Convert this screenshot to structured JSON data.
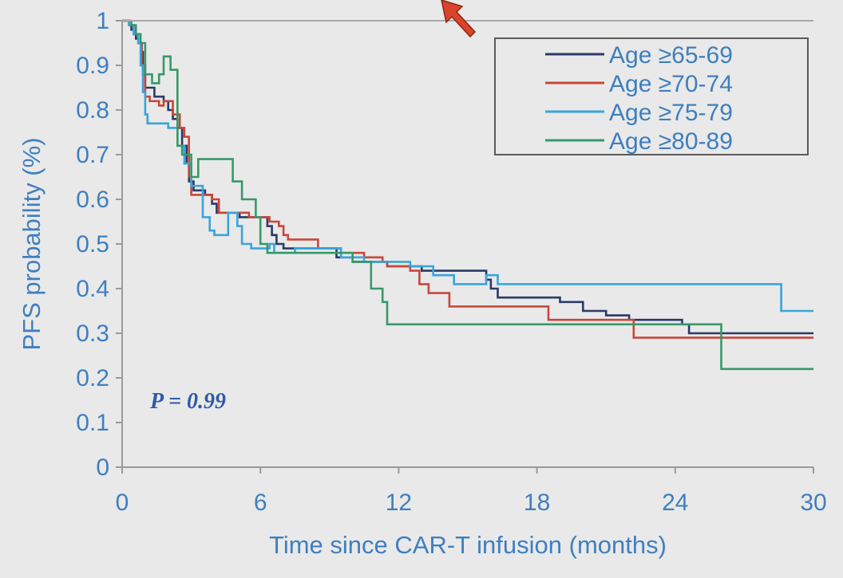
{
  "chart_data": {
    "type": "line",
    "step": true,
    "title": "",
    "xlabel": "Time since CAR-T infusion (months)",
    "ylabel": "PFS probability (%)",
    "xlim": [
      0,
      30
    ],
    "ylim": [
      0,
      1
    ],
    "x_ticks": [
      0,
      6,
      12,
      18,
      24,
      30
    ],
    "y_ticks": [
      0,
      0.1,
      0.2,
      0.3,
      0.4,
      0.5,
      0.6,
      0.7,
      0.8,
      0.9,
      1
    ],
    "y_tick_labels": [
      "0",
      "0.1",
      "0.2",
      "0.3",
      "0.4",
      "0.5",
      "0.6",
      "0.7",
      "0.8",
      "0.9",
      "1"
    ],
    "grid": false,
    "legend_position": "top-right",
    "annotation": {
      "prefix": "P",
      "text": " = 0.99"
    },
    "colors": {
      "axis": "#3f7fbf",
      "background": "#e9e9e9"
    },
    "series": [
      {
        "name": "Age ≥65-69",
        "color": "#2b3a67",
        "points": [
          [
            0,
            1
          ],
          [
            0.3,
            0.99
          ],
          [
            0.4,
            0.98
          ],
          [
            0.5,
            0.97
          ],
          [
            0.6,
            0.96
          ],
          [
            0.7,
            0.95
          ],
          [
            0.85,
            0.93
          ],
          [
            0.9,
            0.88
          ],
          [
            1.0,
            0.85
          ],
          [
            1.3,
            0.85
          ],
          [
            1.4,
            0.83
          ],
          [
            1.7,
            0.83
          ],
          [
            1.8,
            0.82
          ],
          [
            2.0,
            0.8
          ],
          [
            2.2,
            0.78
          ],
          [
            2.4,
            0.76
          ],
          [
            2.6,
            0.72
          ],
          [
            2.8,
            0.68
          ],
          [
            2.9,
            0.64
          ],
          [
            3.1,
            0.62
          ],
          [
            3.6,
            0.61
          ],
          [
            3.9,
            0.59
          ],
          [
            4.1,
            0.57
          ],
          [
            4.8,
            0.57
          ],
          [
            5.1,
            0.56
          ],
          [
            6.0,
            0.56
          ],
          [
            6.3,
            0.54
          ],
          [
            6.5,
            0.52
          ],
          [
            6.7,
            0.5
          ],
          [
            7.0,
            0.49
          ],
          [
            9.0,
            0.49
          ],
          [
            9.3,
            0.47
          ],
          [
            10.0,
            0.46
          ],
          [
            11.5,
            0.45
          ],
          [
            12.5,
            0.45
          ],
          [
            13.0,
            0.44
          ],
          [
            15.5,
            0.44
          ],
          [
            15.8,
            0.42
          ],
          [
            16.0,
            0.4
          ],
          [
            16.3,
            0.38
          ],
          [
            19.0,
            0.37
          ],
          [
            20.0,
            0.35
          ],
          [
            21.0,
            0.34
          ],
          [
            22.0,
            0.33
          ],
          [
            24.0,
            0.33
          ],
          [
            24.3,
            0.32
          ],
          [
            24.6,
            0.3
          ],
          [
            30.0,
            0.3
          ]
        ]
      },
      {
        "name": "Age ≥70-74",
        "color": "#c9473a",
        "points": [
          [
            0,
            1
          ],
          [
            0.3,
            0.99
          ],
          [
            0.5,
            0.97
          ],
          [
            0.7,
            0.95
          ],
          [
            0.85,
            0.9
          ],
          [
            1.0,
            0.83
          ],
          [
            1.2,
            0.82
          ],
          [
            1.6,
            0.81
          ],
          [
            1.8,
            0.82
          ],
          [
            2.2,
            0.79
          ],
          [
            2.5,
            0.76
          ],
          [
            2.7,
            0.74
          ],
          [
            2.9,
            0.65
          ],
          [
            3.0,
            0.61
          ],
          [
            3.9,
            0.6
          ],
          [
            4.2,
            0.57
          ],
          [
            5.0,
            0.57
          ],
          [
            5.5,
            0.56
          ],
          [
            6.4,
            0.55
          ],
          [
            6.8,
            0.54
          ],
          [
            7.0,
            0.52
          ],
          [
            7.2,
            0.51
          ],
          [
            8.5,
            0.49
          ],
          [
            9.5,
            0.48
          ],
          [
            10.5,
            0.47
          ],
          [
            11.3,
            0.46
          ],
          [
            11.5,
            0.45
          ],
          [
            12.5,
            0.44
          ],
          [
            12.9,
            0.41
          ],
          [
            13.3,
            0.39
          ],
          [
            14.2,
            0.36
          ],
          [
            16.0,
            0.36
          ],
          [
            18.5,
            0.33
          ],
          [
            22.0,
            0.33
          ],
          [
            22.2,
            0.29
          ],
          [
            30.0,
            0.29
          ]
        ]
      },
      {
        "name": "Age ≥75-79",
        "color": "#38a5dc",
        "points": [
          [
            0,
            1
          ],
          [
            0.3,
            0.99
          ],
          [
            0.5,
            0.97
          ],
          [
            0.7,
            0.95
          ],
          [
            0.8,
            0.9
          ],
          [
            0.9,
            0.84
          ],
          [
            1.0,
            0.79
          ],
          [
            1.1,
            0.77
          ],
          [
            2.0,
            0.76
          ],
          [
            2.4,
            0.72
          ],
          [
            2.7,
            0.68
          ],
          [
            3.0,
            0.63
          ],
          [
            3.5,
            0.56
          ],
          [
            3.8,
            0.53
          ],
          [
            4.0,
            0.52
          ],
          [
            4.6,
            0.57
          ],
          [
            5.0,
            0.54
          ],
          [
            5.2,
            0.5
          ],
          [
            5.6,
            0.49
          ],
          [
            6.4,
            0.5
          ],
          [
            6.6,
            0.48
          ],
          [
            7.5,
            0.49
          ],
          [
            9.0,
            0.49
          ],
          [
            9.5,
            0.47
          ],
          [
            10.5,
            0.46
          ],
          [
            12.5,
            0.45
          ],
          [
            13.5,
            0.43
          ],
          [
            14.0,
            0.43
          ],
          [
            14.4,
            0.41
          ],
          [
            15.8,
            0.43
          ],
          [
            16.3,
            0.41
          ],
          [
            28.5,
            0.41
          ],
          [
            28.6,
            0.35
          ],
          [
            30.0,
            0.35
          ]
        ]
      },
      {
        "name": "Age ≥80-89",
        "color": "#36996a",
        "points": [
          [
            0,
            1
          ],
          [
            0.4,
            0.99
          ],
          [
            0.6,
            0.97
          ],
          [
            0.8,
            0.95
          ],
          [
            1.0,
            0.88
          ],
          [
            1.3,
            0.86
          ],
          [
            1.6,
            0.88
          ],
          [
            1.8,
            0.92
          ],
          [
            2.1,
            0.89
          ],
          [
            2.4,
            0.72
          ],
          [
            2.6,
            0.7
          ],
          [
            3.0,
            0.65
          ],
          [
            3.3,
            0.69
          ],
          [
            4.4,
            0.69
          ],
          [
            4.8,
            0.64
          ],
          [
            5.2,
            0.6
          ],
          [
            5.8,
            0.56
          ],
          [
            6.0,
            0.5
          ],
          [
            6.3,
            0.48
          ],
          [
            9.5,
            0.48
          ],
          [
            10.0,
            0.46
          ],
          [
            10.8,
            0.4
          ],
          [
            11.3,
            0.37
          ],
          [
            11.5,
            0.32
          ],
          [
            22.0,
            0.32
          ],
          [
            24.0,
            0.32
          ],
          [
            25.8,
            0.32
          ],
          [
            26.0,
            0.22
          ],
          [
            30.0,
            0.22
          ]
        ]
      }
    ]
  }
}
